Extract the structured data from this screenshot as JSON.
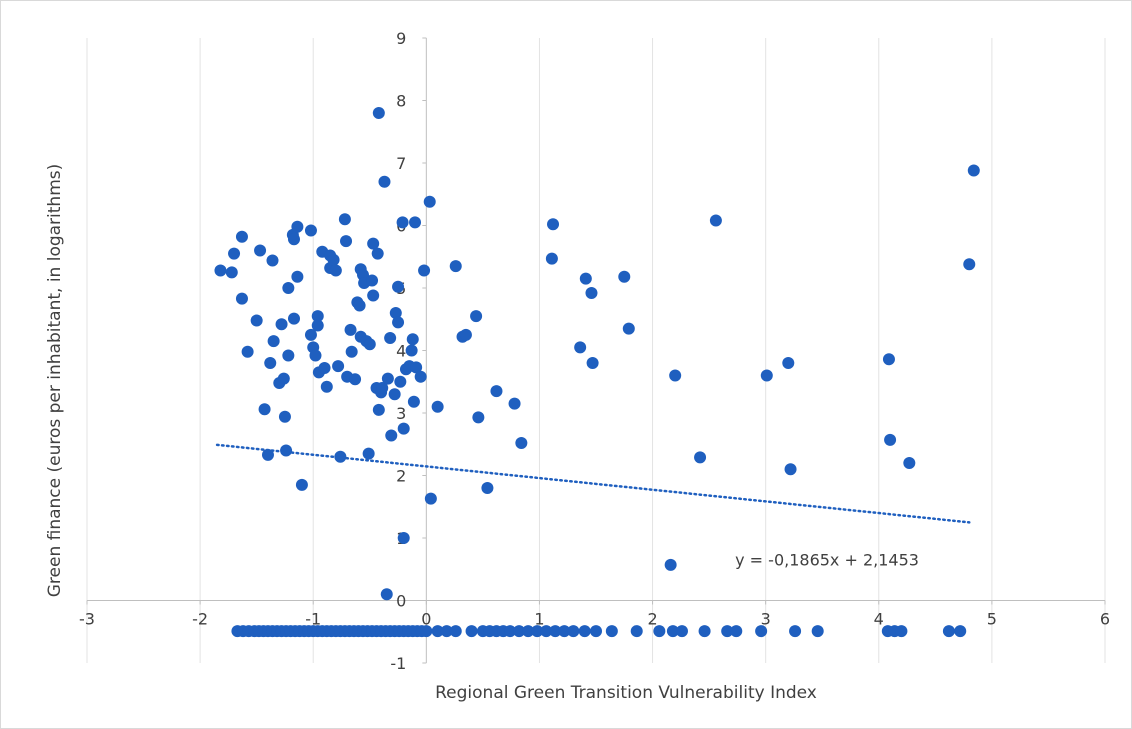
{
  "chart_data": {
    "type": "scatter",
    "title": "",
    "xlabel": "Regional Green Transition Vulnerability Index",
    "ylabel": "Green finance (euros per inhabitant, in logarithms)",
    "xlim": [
      -3,
      6
    ],
    "ylim": [
      -1,
      9
    ],
    "x_ticks": [
      -3,
      -2,
      -1,
      0,
      1,
      2,
      3,
      4,
      5,
      6
    ],
    "y_ticks": [
      -1,
      0,
      1,
      2,
      3,
      4,
      5,
      6,
      7,
      8,
      9
    ],
    "x_tick_labels": [
      "-3",
      "-2",
      "-1",
      "0",
      "1",
      "2",
      "3",
      "4",
      "5",
      "6"
    ],
    "y_tick_labels": [
      "-1",
      "0",
      "1",
      "2",
      "3",
      "4",
      "5",
      "6",
      "7",
      "8",
      "9"
    ],
    "grid": {
      "vertical": true,
      "horizontal": false
    },
    "marker_color": "#1f5fbf",
    "trendline": {
      "slope": -0.1865,
      "intercept": 2.1453,
      "x_range": [
        -1.85,
        4.8
      ],
      "equation": "y = -0,1865x + 2,1453",
      "style": "dotted"
    },
    "series": [
      {
        "points": [
          [
            -1.82,
            5.28
          ],
          [
            -1.72,
            5.25
          ],
          [
            -1.7,
            5.55
          ],
          [
            -1.63,
            5.82
          ],
          [
            -1.63,
            4.83
          ],
          [
            -1.58,
            3.98
          ],
          [
            -1.5,
            4.48
          ],
          [
            -1.47,
            5.6
          ],
          [
            -1.43,
            3.06
          ],
          [
            -1.4,
            2.33
          ],
          [
            -1.38,
            3.8
          ],
          [
            -1.36,
            5.44
          ],
          [
            -1.35,
            4.15
          ],
          [
            -1.3,
            3.48
          ],
          [
            -1.28,
            4.42
          ],
          [
            -1.26,
            3.55
          ],
          [
            -1.25,
            2.94
          ],
          [
            -1.24,
            2.4
          ],
          [
            -1.22,
            3.92
          ],
          [
            -1.22,
            5.0
          ],
          [
            -1.18,
            5.85
          ],
          [
            -1.17,
            5.78
          ],
          [
            -1.17,
            4.51
          ],
          [
            -1.14,
            5.98
          ],
          [
            -1.14,
            5.18
          ],
          [
            -1.1,
            1.85
          ],
          [
            -1.02,
            5.92
          ],
          [
            -1.02,
            4.25
          ],
          [
            -1.0,
            4.05
          ],
          [
            -0.98,
            3.92
          ],
          [
            -0.96,
            4.55
          ],
          [
            -0.96,
            4.4
          ],
          [
            -0.95,
            3.65
          ],
          [
            -0.92,
            5.58
          ],
          [
            -0.9,
            3.72
          ],
          [
            -0.88,
            3.42
          ],
          [
            -0.85,
            5.32
          ],
          [
            -0.85,
            5.52
          ],
          [
            -0.82,
            5.45
          ],
          [
            -0.8,
            5.28
          ],
          [
            -0.78,
            3.75
          ],
          [
            -0.76,
            2.3
          ],
          [
            -0.72,
            6.1
          ],
          [
            -0.71,
            5.75
          ],
          [
            -0.7,
            3.58
          ],
          [
            -0.67,
            4.33
          ],
          [
            -0.66,
            3.98
          ],
          [
            -0.63,
            3.54
          ],
          [
            -0.61,
            4.77
          ],
          [
            -0.59,
            4.72
          ],
          [
            -0.58,
            5.3
          ],
          [
            -0.58,
            4.22
          ],
          [
            -0.56,
            5.21
          ],
          [
            -0.55,
            5.08
          ],
          [
            -0.53,
            4.15
          ],
          [
            -0.51,
            2.35
          ],
          [
            -0.5,
            4.1
          ],
          [
            -0.48,
            5.12
          ],
          [
            -0.47,
            4.88
          ],
          [
            -0.47,
            5.71
          ],
          [
            -0.44,
            3.4
          ],
          [
            -0.43,
            5.55
          ],
          [
            -0.42,
            3.05
          ],
          [
            -0.4,
            3.33
          ],
          [
            -0.39,
            3.4
          ],
          [
            -0.37,
            6.7
          ],
          [
            -0.35,
            0.1
          ],
          [
            -0.34,
            3.55
          ],
          [
            -0.32,
            4.2
          ],
          [
            -0.31,
            2.64
          ],
          [
            -0.28,
            3.3
          ],
          [
            -0.27,
            4.6
          ],
          [
            -0.25,
            4.45
          ],
          [
            -0.25,
            5.02
          ],
          [
            -0.23,
            3.5
          ],
          [
            -0.21,
            6.05
          ],
          [
            -0.2,
            2.75
          ],
          [
            -0.18,
            3.7
          ],
          [
            -0.15,
            3.75
          ],
          [
            -0.13,
            4.0
          ],
          [
            -0.12,
            4.18
          ],
          [
            -0.11,
            3.18
          ],
          [
            -0.09,
            3.73
          ],
          [
            -0.05,
            3.58
          ],
          [
            -0.02,
            5.28
          ],
          [
            0.03,
            6.38
          ],
          [
            0.04,
            1.63
          ],
          [
            0.26,
            5.35
          ],
          [
            0.32,
            4.22
          ],
          [
            0.35,
            4.25
          ],
          [
            0.44,
            4.55
          ],
          [
            0.46,
            2.93
          ],
          [
            0.54,
            1.8
          ],
          [
            0.62,
            3.35
          ],
          [
            0.78,
            3.15
          ],
          [
            0.84,
            2.52
          ],
          [
            1.11,
            5.47
          ],
          [
            1.12,
            6.02
          ],
          [
            1.36,
            4.05
          ],
          [
            1.41,
            5.15
          ],
          [
            1.46,
            4.92
          ],
          [
            1.47,
            3.8
          ],
          [
            1.75,
            5.18
          ],
          [
            1.79,
            4.35
          ],
          [
            2.16,
            0.57
          ],
          [
            2.2,
            3.6
          ],
          [
            2.42,
            2.29
          ],
          [
            2.56,
            6.08
          ],
          [
            3.01,
            3.6
          ],
          [
            3.2,
            3.8
          ],
          [
            3.22,
            2.1
          ],
          [
            4.09,
            3.86
          ],
          [
            4.1,
            2.57
          ],
          [
            4.27,
            2.2
          ],
          [
            4.8,
            5.38
          ],
          [
            4.84,
            6.88
          ],
          [
            -0.42,
            7.8
          ],
          [
            -0.1,
            6.05
          ],
          [
            -0.2,
            1.0
          ],
          [
            0.1,
            3.1
          ]
        ]
      },
      {
        "points": [
          [
            -1.67,
            -0.49
          ],
          [
            -1.62,
            -0.49
          ],
          [
            -1.57,
            -0.49
          ],
          [
            -1.52,
            -0.49
          ],
          [
            -1.48,
            -0.49
          ],
          [
            -1.44,
            -0.49
          ],
          [
            -1.4,
            -0.49
          ],
          [
            -1.36,
            -0.49
          ],
          [
            -1.32,
            -0.49
          ],
          [
            -1.28,
            -0.49
          ],
          [
            -1.24,
            -0.49
          ],
          [
            -1.2,
            -0.49
          ],
          [
            -1.16,
            -0.49
          ],
          [
            -1.12,
            -0.49
          ],
          [
            -1.08,
            -0.49
          ],
          [
            -1.04,
            -0.49
          ],
          [
            -1.0,
            -0.49
          ],
          [
            -0.96,
            -0.49
          ],
          [
            -0.92,
            -0.49
          ],
          [
            -0.88,
            -0.49
          ],
          [
            -0.84,
            -0.49
          ],
          [
            -0.8,
            -0.49
          ],
          [
            -0.76,
            -0.49
          ],
          [
            -0.72,
            -0.49
          ],
          [
            -0.68,
            -0.49
          ],
          [
            -0.64,
            -0.49
          ],
          [
            -0.6,
            -0.49
          ],
          [
            -0.56,
            -0.49
          ],
          [
            -0.52,
            -0.49
          ],
          [
            -0.48,
            -0.49
          ],
          [
            -0.44,
            -0.49
          ],
          [
            -0.4,
            -0.49
          ],
          [
            -0.36,
            -0.49
          ],
          [
            -0.32,
            -0.49
          ],
          [
            -0.28,
            -0.49
          ],
          [
            -0.24,
            -0.49
          ],
          [
            -0.2,
            -0.49
          ],
          [
            -0.16,
            -0.49
          ],
          [
            -0.12,
            -0.49
          ],
          [
            -0.08,
            -0.49
          ],
          [
            -0.04,
            -0.49
          ],
          [
            0.0,
            -0.49
          ],
          [
            0.1,
            -0.49
          ],
          [
            0.18,
            -0.49
          ],
          [
            0.26,
            -0.49
          ],
          [
            0.4,
            -0.49
          ],
          [
            0.5,
            -0.49
          ],
          [
            0.56,
            -0.49
          ],
          [
            0.62,
            -0.49
          ],
          [
            0.68,
            -0.49
          ],
          [
            0.74,
            -0.49
          ],
          [
            0.82,
            -0.49
          ],
          [
            0.9,
            -0.49
          ],
          [
            0.98,
            -0.49
          ],
          [
            1.06,
            -0.49
          ],
          [
            1.14,
            -0.49
          ],
          [
            1.22,
            -0.49
          ],
          [
            1.3,
            -0.49
          ],
          [
            1.4,
            -0.49
          ],
          [
            1.5,
            -0.49
          ],
          [
            1.64,
            -0.49
          ],
          [
            1.86,
            -0.49
          ],
          [
            2.06,
            -0.49
          ],
          [
            2.18,
            -0.49
          ],
          [
            2.26,
            -0.49
          ],
          [
            2.46,
            -0.49
          ],
          [
            2.66,
            -0.49
          ],
          [
            2.74,
            -0.49
          ],
          [
            2.96,
            -0.49
          ],
          [
            3.26,
            -0.49
          ],
          [
            3.46,
            -0.49
          ],
          [
            4.08,
            -0.49
          ],
          [
            4.14,
            -0.49
          ],
          [
            4.2,
            -0.49
          ],
          [
            4.62,
            -0.49
          ],
          [
            4.72,
            -0.49
          ]
        ]
      }
    ]
  }
}
